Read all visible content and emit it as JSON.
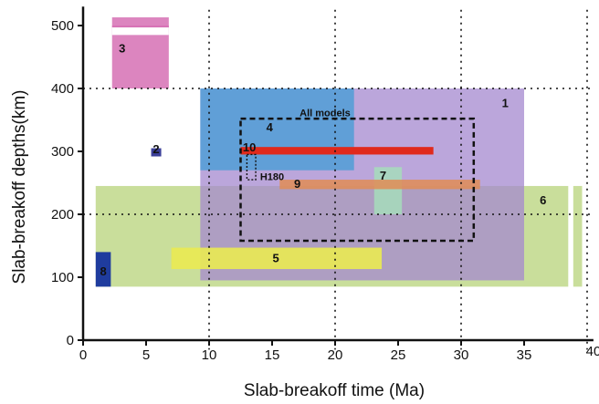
{
  "chart_data": {
    "type": "area",
    "title": "",
    "xlabel": "Slab-breakoff time (Ma)",
    "ylabel": "Slab-breakoff depths(km)",
    "xlim": [
      0,
      40
    ],
    "ylim": [
      0,
      520
    ],
    "x_ticks": [
      0,
      5,
      10,
      15,
      20,
      25,
      30,
      35,
      40
    ],
    "y_ticks": [
      0,
      100,
      200,
      300,
      400,
      500
    ],
    "grid": "dotted reference lines at x = 10, 20, 30, 40 and y = 200, 400",
    "regions": [
      {
        "label": "6",
        "x": [
          1,
          38.5
        ],
        "y": [
          85,
          245
        ],
        "color": "#b7d37a",
        "opacity": 0.75
      },
      {
        "label": "1",
        "x": [
          9.3,
          35
        ],
        "y": [
          95,
          400
        ],
        "color": "#a488cf",
        "opacity": 0.75
      },
      {
        "label": "4",
        "x": [
          9.3,
          21.5
        ],
        "y": [
          270,
          400
        ],
        "color": "#4a9ed6",
        "opacity": 0.8
      },
      {
        "label": "3",
        "x": [
          2.3,
          6.8
        ],
        "y": [
          400,
          500
        ],
        "color": "#d670b4",
        "opacity": 0.85
      },
      {
        "label": "7",
        "x": [
          23.1,
          25.3
        ],
        "y": [
          200,
          275
        ],
        "color": "#a6dcbb",
        "opacity": 0.85
      },
      {
        "label": "9",
        "x": [
          15.6,
          31.5
        ],
        "y": [
          240,
          255
        ],
        "color": "#e08c55",
        "opacity": 0.85
      },
      {
        "label": "10",
        "x": [
          12.5,
          27.8
        ],
        "y": [
          295,
          307
        ],
        "color": "#e02a1c",
        "opacity": 1
      },
      {
        "label": "5",
        "x": [
          7,
          23.7
        ],
        "y": [
          113,
          147
        ],
        "color": "#eaea52",
        "opacity": 0.9
      },
      {
        "label": "8",
        "x": [
          1,
          2.2
        ],
        "y": [
          85,
          140
        ],
        "color": "#1f3c9e",
        "opacity": 1
      },
      {
        "label": "2",
        "x": [
          5.4,
          6.2
        ],
        "y": [
          292,
          305
        ],
        "color": "#3b3f99",
        "opacity": 1
      }
    ],
    "extra_strips": [
      {
        "x": [
          38.9,
          39.6
        ],
        "y": [
          85,
          245
        ],
        "color": "#b7d37a"
      }
    ],
    "outlines": [
      {
        "label": "All models",
        "x": [
          12.5,
          31
        ],
        "y": [
          158,
          352
        ],
        "style": "dashed"
      },
      {
        "label": "H180",
        "x": [
          13,
          13.7
        ],
        "y": [
          255,
          295
        ],
        "style": "dotted"
      }
    ]
  }
}
